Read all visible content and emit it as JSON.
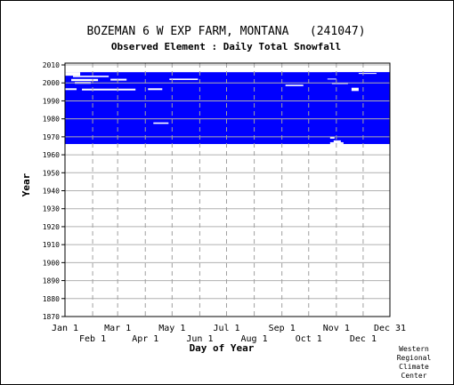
{
  "chart_data": {
    "type": "heatmap",
    "title": "BOZEMAN 6 W EXP FARM, MONTANA   (241047)",
    "subtitle": "Observed Element : Daily Total Snowfall",
    "xlabel": "Day of Year",
    "ylabel": "Year",
    "xlim": [
      1,
      365
    ],
    "ylim": [
      1870,
      2011
    ],
    "y_ticks": [
      1870,
      1880,
      1890,
      1900,
      1910,
      1920,
      1930,
      1940,
      1950,
      1960,
      1970,
      1980,
      1990,
      2000,
      2010
    ],
    "x_ticks_top_row": [
      {
        "label": "Jan 1",
        "day": 1
      },
      {
        "label": "Mar 1",
        "day": 60
      },
      {
        "label": "May 1",
        "day": 121
      },
      {
        "label": "Jul 1",
        "day": 182
      },
      {
        "label": "Sep 1",
        "day": 244
      },
      {
        "label": "Nov 1",
        "day": 305
      },
      {
        "label": "Dec 31",
        "day": 365
      }
    ],
    "x_ticks_bottom_row": [
      {
        "label": "Feb 1",
        "day": 32
      },
      {
        "label": "Apr 1",
        "day": 91
      },
      {
        "label": "Jun 1",
        "day": 152
      },
      {
        "label": "Aug 1",
        "day": 213
      },
      {
        "label": "Oct 1",
        "day": 274
      },
      {
        "label": "Dec 1",
        "day": 335
      }
    ],
    "grid": true,
    "data_color": "#0000ff",
    "coverage_year_range": [
      1966,
      2006
    ],
    "missing_periods": [
      {
        "year_start": 2006,
        "year_end": 2007,
        "day_start": 1,
        "day_end": 300
      },
      {
        "year_start": 2004,
        "year_end": 2006,
        "day_start": 1,
        "day_end": 18
      },
      {
        "year_start": 2003.2,
        "year_end": 2004,
        "day_start": 10,
        "day_end": 50
      },
      {
        "year_start": 2001,
        "year_end": 2002.2,
        "day_start": 8,
        "day_end": 38
      },
      {
        "year_start": 1999.5,
        "year_end": 2000.5,
        "day_start": 12,
        "day_end": 30
      },
      {
        "year_start": 2001.3,
        "year_end": 2002.3,
        "day_start": 52,
        "day_end": 70
      },
      {
        "year_start": 1996,
        "year_end": 1997,
        "day_start": 1,
        "day_end": 14
      },
      {
        "year_start": 1995.8,
        "year_end": 1996.8,
        "day_start": 20,
        "day_end": 80
      },
      {
        "year_start": 1996,
        "year_end": 1997,
        "day_start": 94,
        "day_end": 110
      },
      {
        "year_start": 2001.6,
        "year_end": 2002.4,
        "day_start": 118,
        "day_end": 150
      },
      {
        "year_start": 1977.2,
        "year_end": 1978,
        "day_start": 100,
        "day_end": 117
      },
      {
        "year_start": 1998.2,
        "year_end": 1999,
        "day_start": 248,
        "day_end": 268
      },
      {
        "year_start": 1999.4,
        "year_end": 2000,
        "day_start": 300,
        "day_end": 318
      },
      {
        "year_start": 1995.5,
        "year_end": 1997.3,
        "day_start": 322,
        "day_end": 330
      },
      {
        "year_start": 1966,
        "year_end": 1967,
        "day_start": 298,
        "day_end": 313
      },
      {
        "year_start": 1967,
        "year_end": 1968,
        "day_start": 302,
        "day_end": 310
      },
      {
        "year_start": 1969,
        "year_end": 1970,
        "day_start": 298,
        "day_end": 303
      },
      {
        "year_start": 2005,
        "year_end": 2005.5,
        "day_start": 330,
        "day_end": 350
      },
      {
        "year_start": 2002,
        "year_end": 2002.4,
        "day_start": 295,
        "day_end": 305
      }
    ]
  },
  "credit": [
    "Western",
    "Regional",
    "Climate",
    "Center"
  ]
}
